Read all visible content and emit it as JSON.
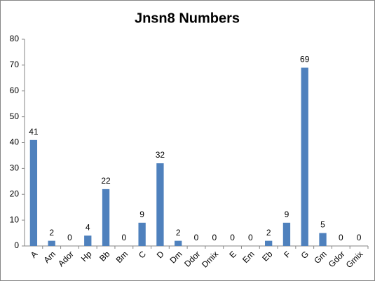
{
  "chart_data": {
    "type": "bar",
    "title": "Jnsn8 Numbers",
    "categories": [
      "A",
      "Am",
      "Ador",
      "Hp",
      "Bb",
      "Bm",
      "C",
      "D",
      "Dm",
      "Ddor",
      "Dmix",
      "E",
      "Em",
      "Eb",
      "F",
      "G",
      "Gm",
      "Gdor",
      "Gmix"
    ],
    "values": [
      41,
      2,
      0,
      4,
      22,
      0,
      9,
      32,
      2,
      0,
      0,
      0,
      0,
      2,
      9,
      69,
      5,
      0,
      0
    ],
    "color": "#4f81bd",
    "ylim": [
      0,
      80
    ],
    "yticks": [
      0,
      10,
      20,
      30,
      40,
      50,
      60,
      70,
      80
    ],
    "grid": false,
    "data_labels": true
  }
}
